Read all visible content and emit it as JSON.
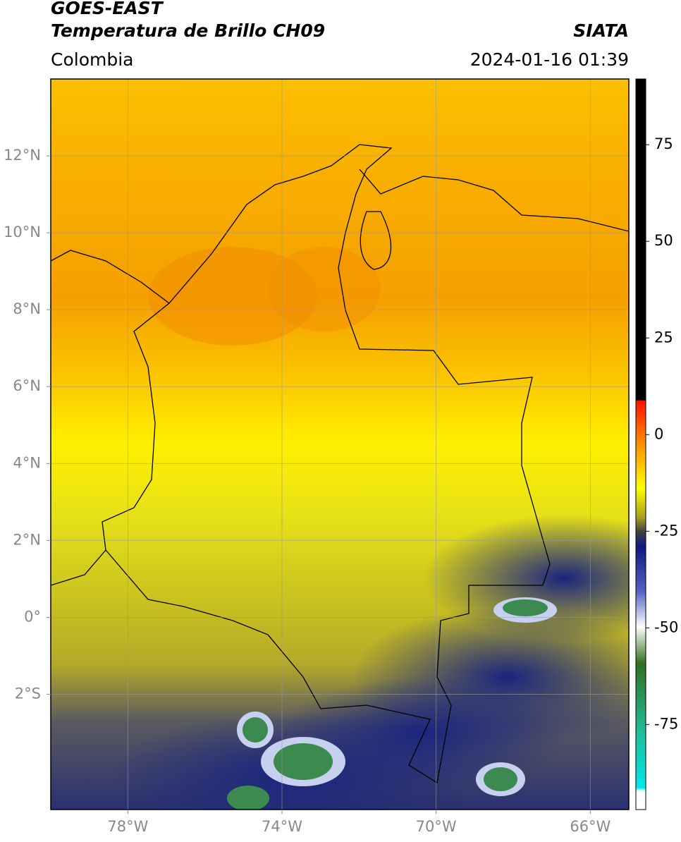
{
  "header": {
    "title": "GOES-EAST",
    "subtitle": "Temperatura de Brillo CH09",
    "source": "SIATA",
    "region": "Colombia",
    "datetime": "2024-01-16 01:39"
  },
  "map": {
    "xlim": [
      -80,
      -65
    ],
    "ylim": [
      -5,
      14
    ],
    "xticks": [
      {
        "value": -78,
        "label": "78°W"
      },
      {
        "value": -74,
        "label": "74°W"
      },
      {
        "value": -70,
        "label": "70°W"
      },
      {
        "value": -66,
        "label": "66°W"
      }
    ],
    "yticks": [
      {
        "value": 12,
        "label": "12°N"
      },
      {
        "value": 10,
        "label": "10°N"
      },
      {
        "value": 8,
        "label": "8°N"
      },
      {
        "value": 6,
        "label": "6°N"
      },
      {
        "value": 4,
        "label": "4°N"
      },
      {
        "value": 2,
        "label": "2°N"
      },
      {
        "value": 0,
        "label": "0°"
      },
      {
        "value": -2,
        "label": "2°S"
      }
    ],
    "grid": true
  },
  "colorbar": {
    "lim": [
      -97,
      92
    ],
    "ticks": [
      75,
      50,
      25,
      0,
      -25,
      -50,
      -75
    ]
  }
}
